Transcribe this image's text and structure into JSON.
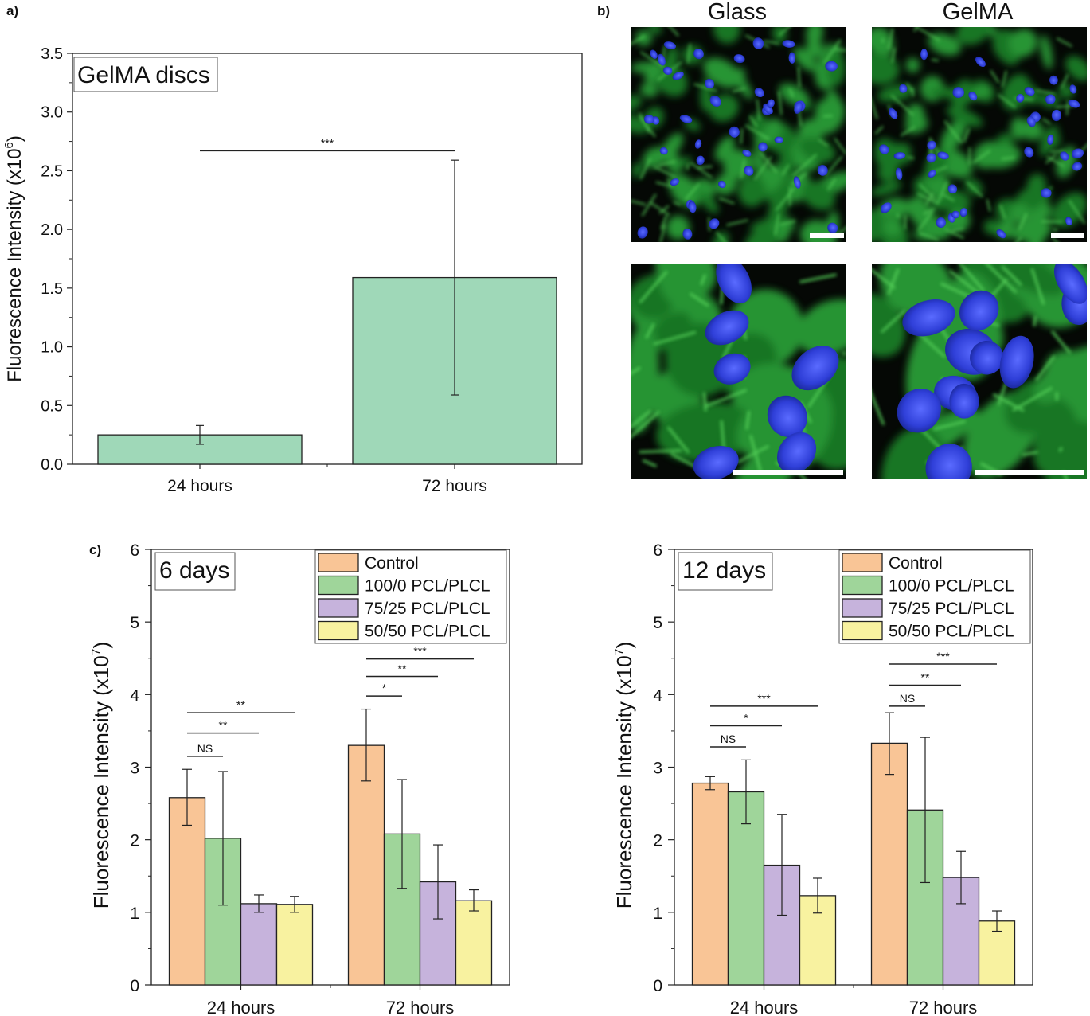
{
  "panels": {
    "a": "a)",
    "b": "b)",
    "c": "c)"
  },
  "micrographs": {
    "columns": [
      "Glass",
      "GelMA"
    ]
  },
  "chart_data": [
    {
      "id": "a",
      "type": "bar",
      "title": "GelMA discs",
      "ylabel": "Fluorescence Intensity (x10",
      "ylabel_sup": "6",
      "ylabel_end": ")",
      "ylim": [
        0,
        3.5
      ],
      "yticks": [
        0.0,
        0.5,
        1.0,
        1.5,
        2.0,
        2.5,
        3.0,
        3.5
      ],
      "ytick_labels": [
        "0.0",
        "0.5",
        "1.0",
        "1.5",
        "2.0",
        "2.5",
        "3.0",
        "3.5"
      ],
      "categories": [
        "24 hours",
        "72 hours"
      ],
      "values": [
        0.25,
        1.59
      ],
      "errors": [
        [
          0.17,
          0.33
        ],
        [
          0.59,
          2.59
        ]
      ],
      "bar_color": "#9fd8b8",
      "significance": [
        {
          "from": 0,
          "to": 1,
          "y": 2.67,
          "label": "***"
        }
      ]
    },
    {
      "id": "c1",
      "type": "bar",
      "title": "6 days",
      "ylabel": "Fluorescence Intensity (x10",
      "ylabel_sup": "7",
      "ylabel_end": ")",
      "ylim": [
        0,
        6
      ],
      "yticks": [
        0,
        1,
        2,
        3,
        4,
        5,
        6
      ],
      "ytick_labels": [
        "0",
        "1",
        "2",
        "3",
        "4",
        "5",
        "6"
      ],
      "categories": [
        "24 hours",
        "72 hours"
      ],
      "series": [
        {
          "name": "Control",
          "color": "#f9c596",
          "values": [
            2.58,
            3.3
          ],
          "errors": [
            [
              2.2,
              2.97
            ],
            [
              2.81,
              3.8
            ]
          ]
        },
        {
          "name": "100/0 PCL/PLCL",
          "color": "#9fd59a",
          "values": [
            2.02,
            2.08
          ],
          "errors": [
            [
              1.1,
              2.94
            ],
            [
              1.33,
              2.83
            ]
          ]
        },
        {
          "name": "75/25 PCL/PLCL",
          "color": "#c6b3dc",
          "values": [
            1.12,
            1.42
          ],
          "errors": [
            [
              1.0,
              1.24
            ],
            [
              0.91,
              1.93
            ]
          ]
        },
        {
          "name": "50/50 PCL/PLCL",
          "color": "#f8f2a0",
          "values": [
            1.11,
            1.16
          ],
          "errors": [
            [
              1.0,
              1.22
            ],
            [
              1.02,
              1.31
            ]
          ]
        }
      ],
      "legend_position": "top-right",
      "significance": [
        {
          "category": 0,
          "from": 0,
          "to": 1,
          "y": 3.15,
          "label": "NS"
        },
        {
          "category": 0,
          "from": 0,
          "to": 2,
          "y": 3.47,
          "label": "**"
        },
        {
          "category": 0,
          "from": 0,
          "to": 3,
          "y": 3.75,
          "label": "**"
        },
        {
          "category": 1,
          "from": 0,
          "to": 1,
          "y": 3.98,
          "label": "*"
        },
        {
          "category": 1,
          "from": 0,
          "to": 2,
          "y": 4.25,
          "label": "**"
        },
        {
          "category": 1,
          "from": 0,
          "to": 3,
          "y": 4.49,
          "label": "***"
        }
      ]
    },
    {
      "id": "c2",
      "type": "bar",
      "title": "12 days",
      "ylabel": "Fluorescence Intensity (x10",
      "ylabel_sup": "7",
      "ylabel_end": ")",
      "ylim": [
        0,
        6
      ],
      "yticks": [
        0,
        1,
        2,
        3,
        4,
        5,
        6
      ],
      "ytick_labels": [
        "0",
        "1",
        "2",
        "3",
        "4",
        "5",
        "6"
      ],
      "categories": [
        "24 hours",
        "72 hours"
      ],
      "series": [
        {
          "name": "Control",
          "color": "#f9c596",
          "values": [
            2.78,
            3.33
          ],
          "errors": [
            [
              2.69,
              2.87
            ],
            [
              2.9,
              3.75
            ]
          ]
        },
        {
          "name": "100/0 PCL/PLCL",
          "color": "#9fd59a",
          "values": [
            2.66,
            2.41
          ],
          "errors": [
            [
              2.22,
              3.1
            ],
            [
              1.41,
              3.41
            ]
          ]
        },
        {
          "name": "75/25 PCL/PLCL",
          "color": "#c6b3dc",
          "values": [
            1.65,
            1.48
          ],
          "errors": [
            [
              0.96,
              2.35
            ],
            [
              1.12,
              1.84
            ]
          ]
        },
        {
          "name": "50/50 PCL/PLCL",
          "color": "#f8f2a0",
          "values": [
            1.23,
            0.88
          ],
          "errors": [
            [
              0.99,
              1.47
            ],
            [
              0.74,
              1.02
            ]
          ]
        }
      ],
      "legend_position": "top-right",
      "significance": [
        {
          "category": 0,
          "from": 0,
          "to": 1,
          "y": 3.28,
          "label": "NS"
        },
        {
          "category": 0,
          "from": 0,
          "to": 2,
          "y": 3.57,
          "label": "*"
        },
        {
          "category": 0,
          "from": 0,
          "to": 3,
          "y": 3.84,
          "label": "***"
        },
        {
          "category": 1,
          "from": 0,
          "to": 1,
          "y": 3.84,
          "label": "NS"
        },
        {
          "category": 1,
          "from": 0,
          "to": 2,
          "y": 4.13,
          "label": "**"
        },
        {
          "category": 1,
          "from": 0,
          "to": 3,
          "y": 4.42,
          "label": "***"
        }
      ]
    }
  ]
}
